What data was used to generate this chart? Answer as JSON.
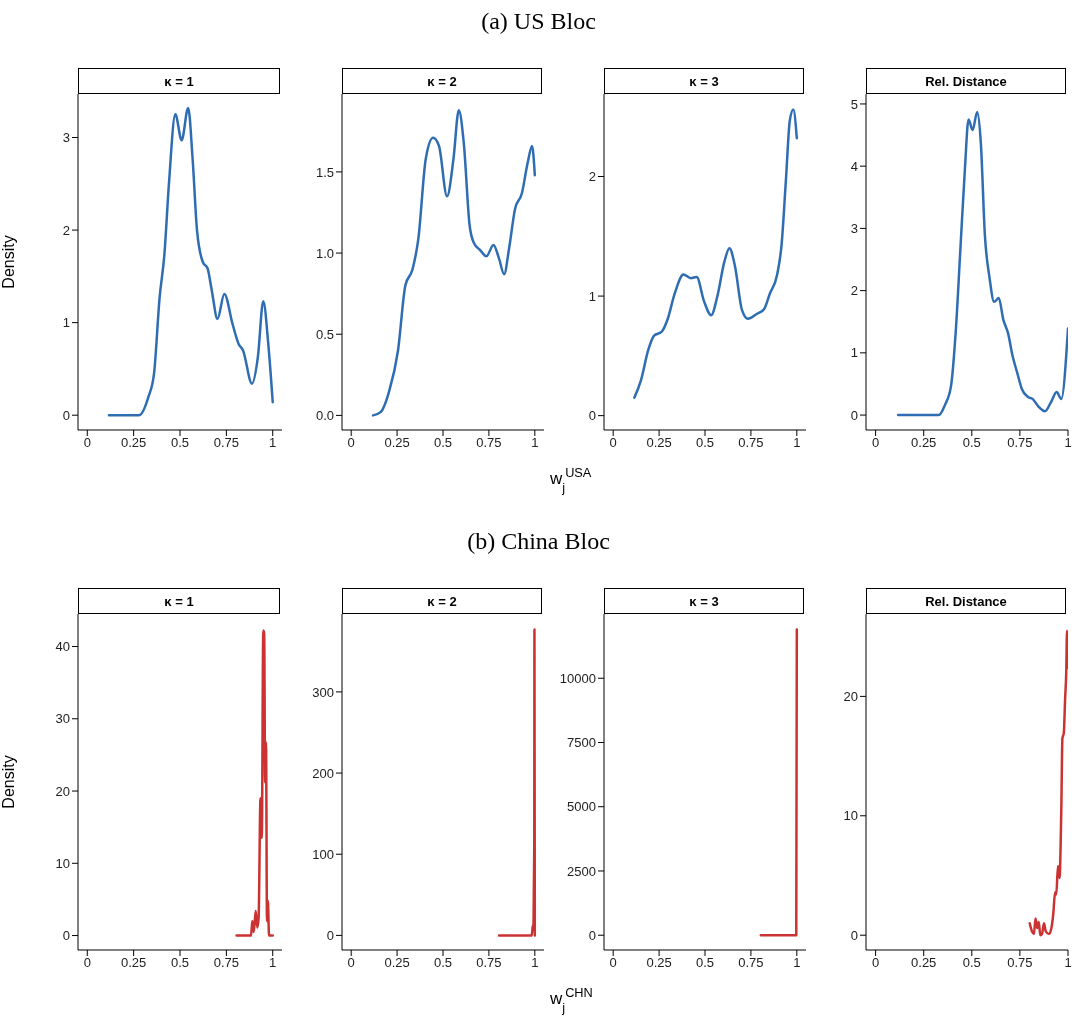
{
  "chart_data": [
    {
      "type": "line",
      "title": "κ = 1",
      "ylabel": "Density",
      "color": "#2f6db3",
      "xlim": [
        -0.05,
        1.05
      ],
      "xticks": [
        0,
        0.25,
        0.5,
        0.75,
        1
      ],
      "ylim": [
        -0.16,
        3.47
      ],
      "yticks": [
        0,
        1,
        2,
        3
      ],
      "x": [
        0.117,
        0.28,
        0.33,
        0.36,
        0.39,
        0.416,
        0.44,
        0.475,
        0.509,
        0.544,
        0.568,
        0.592,
        0.624,
        0.648,
        0.672,
        0.702,
        0.739,
        0.784,
        0.816,
        0.84,
        0.888,
        0.92,
        0.949,
        0.976,
        1.0
      ],
      "values": [
        0,
        0,
        0.2,
        0.45,
        1.27,
        1.74,
        2.49,
        3.25,
        2.97,
        3.32,
        2.77,
        1.99,
        1.65,
        1.59,
        1.34,
        1.04,
        1.31,
        0.98,
        0.77,
        0.7,
        0.34,
        0.63,
        1.23,
        0.77,
        0.14
      ]
    },
    {
      "type": "line",
      "subtitle": "(a) US Bloc",
      "title": "κ = 2",
      "color": "#2f6db3",
      "xlim": [
        -0.05,
        1.05
      ],
      "xticks": [
        0,
        0.25,
        0.5,
        0.75,
        1
      ],
      "ylim": [
        -0.09,
        1.98
      ],
      "yticks": [
        {
          "value": 0,
          "label": "0.0"
        },
        0.5,
        {
          "value": 1,
          "label": "1.0"
        },
        1.5
      ],
      "x": [
        0.119,
        0.16,
        0.207,
        0.255,
        0.295,
        0.334,
        0.366,
        0.406,
        0.446,
        0.478,
        0.522,
        0.557,
        0.586,
        0.613,
        0.645,
        0.669,
        0.701,
        0.736,
        0.775,
        0.804,
        0.833,
        0.86,
        0.892,
        0.93,
        0.96,
        0.985,
        1.0
      ],
      "values": [
        0,
        0.02,
        0.15,
        0.4,
        0.8,
        0.9,
        1.09,
        1.58,
        1.71,
        1.66,
        1.35,
        1.58,
        1.88,
        1.68,
        1.17,
        1.06,
        1.02,
        0.98,
        1.05,
        0.97,
        0.87,
        1.03,
        1.27,
        1.37,
        1.55,
        1.66,
        1.48
      ]
    },
    {
      "type": "line",
      "title": "κ = 3",
      "xlabel": "w$_{j}$$^{USA}$",
      "color": "#2f6db3",
      "xlim": [
        -0.05,
        1.05
      ],
      "xticks": [
        0,
        0.25,
        0.5,
        0.75,
        1
      ],
      "ylim": [
        -0.12,
        2.69
      ],
      "yticks": [
        0,
        1,
        2
      ],
      "x": [
        0.115,
        0.152,
        0.191,
        0.223,
        0.263,
        0.295,
        0.335,
        0.383,
        0.423,
        0.455,
        0.494,
        0.534,
        0.566,
        0.606,
        0.633,
        0.662,
        0.702,
        0.734,
        0.781,
        0.821,
        0.853,
        0.893,
        0.917,
        0.941,
        0.962,
        0.981,
        1.0
      ],
      "values": [
        0.15,
        0.3,
        0.55,
        0.67,
        0.7,
        0.8,
        1.02,
        1.18,
        1.15,
        1.16,
        0.96,
        0.84,
        0.99,
        1.29,
        1.4,
        1.26,
        0.88,
        0.81,
        0.85,
        0.89,
        1.02,
        1.18,
        1.43,
        1.98,
        2.47,
        2.56,
        2.32
      ]
    },
    {
      "type": "line",
      "title": "Rel. Distance",
      "color": "#2f6db3",
      "xlim": [
        -0.05,
        1.0
      ],
      "xticks": [
        0,
        0.25,
        0.5,
        0.75,
        1
      ],
      "ylim": [
        -0.24,
        5.16
      ],
      "yticks": [
        0,
        1,
        2,
        3,
        4,
        5
      ],
      "x": [
        0.117,
        0.328,
        0.36,
        0.392,
        0.416,
        0.44,
        0.464,
        0.483,
        0.504,
        0.528,
        0.547,
        0.568,
        0.592,
        0.616,
        0.64,
        0.664,
        0.688,
        0.712,
        0.736,
        0.76,
        0.792,
        0.816,
        0.848,
        0.88,
        0.912,
        0.941,
        0.965,
        1.0
      ],
      "values": [
        0,
        0,
        0.16,
        0.47,
        1.32,
        2.63,
        3.95,
        4.75,
        4.58,
        4.87,
        4.37,
        2.89,
        2.21,
        1.82,
        1.88,
        1.53,
        1.32,
        0.95,
        0.68,
        0.42,
        0.29,
        0.26,
        0.13,
        0.06,
        0.21,
        0.37,
        0.26,
        1.39
      ]
    },
    {
      "type": "line",
      "title": "κ = 1",
      "ylabel": "Density",
      "color": "#cb3232",
      "xlim": [
        -0.05,
        1.05
      ],
      "xticks": [
        0,
        0.25,
        0.5,
        0.75,
        1
      ],
      "ylim": [
        -2,
        44.5
      ],
      "yticks": [
        0,
        10,
        20,
        30,
        40
      ],
      "x": [
        0.805,
        0.883,
        0.89,
        0.898,
        0.908,
        0.917,
        0.924,
        0.934,
        0.941,
        0.949,
        0.954,
        0.959,
        0.964,
        0.969,
        0.974,
        0.98,
        1.0
      ],
      "values": [
        0,
        0,
        2,
        0.5,
        3.4,
        1.1,
        2.5,
        19,
        13.5,
        42.2,
        41.8,
        21.2,
        26.7,
        2,
        4.8,
        0,
        0
      ]
    },
    {
      "type": "line",
      "subtitle": "(b) China Bloc",
      "title": "κ = 2",
      "color": "#cb3232",
      "xlim": [
        -0.05,
        1.05
      ],
      "xticks": [
        0,
        0.25,
        0.5,
        0.75,
        1
      ],
      "ylim": [
        -18,
        396
      ],
      "yticks": [
        0,
        100,
        200,
        300
      ],
      "x": [
        0.805,
        0.983,
        0.988,
        0.993,
        0.997,
        0.998,
        1.0
      ],
      "values": [
        0,
        0,
        10,
        14,
        112,
        377,
        0
      ]
    },
    {
      "type": "line",
      "title": "κ = 3",
      "xlabel": "w$_{j}$$^{CHN}$",
      "color": "#cb3232",
      "xlim": [
        -0.05,
        1.05
      ],
      "xticks": [
        0,
        0.25,
        0.5,
        0.75,
        1
      ],
      "ylim": [
        -575,
        12500
      ],
      "yticks": [
        0,
        2500,
        5000,
        7500,
        10000
      ],
      "x": [
        0.804,
        0.997,
        1.0
      ],
      "values": [
        0,
        0,
        11900
      ]
    },
    {
      "type": "line",
      "title": "Rel. Distance",
      "color": "#cb3232",
      "xlim": [
        -0.05,
        1.0
      ],
      "xticks": [
        0,
        0.25,
        0.5,
        0.75,
        1
      ],
      "ylim": [
        -1.24,
        26.9
      ],
      "yticks": [
        0,
        10,
        20
      ],
      "x": [
        0.801,
        0.813,
        0.823,
        0.831,
        0.84,
        0.848,
        0.856,
        0.865,
        0.875,
        0.885,
        0.902,
        0.916,
        0.924,
        0.933,
        0.939,
        0.948,
        0.956,
        0.965,
        0.971,
        0.978,
        0.985,
        0.991,
        0.995,
        1.0
      ],
      "values": [
        1,
        0.3,
        0.1,
        1.4,
        0.6,
        1.1,
        0,
        0.1,
        1,
        0.3,
        0.1,
        0.8,
        1.9,
        3.6,
        3.4,
        5.8,
        4.8,
        10.4,
        16.5,
        16.9,
        19.8,
        22.1,
        25.5,
        22.4
      ]
    }
  ]
}
